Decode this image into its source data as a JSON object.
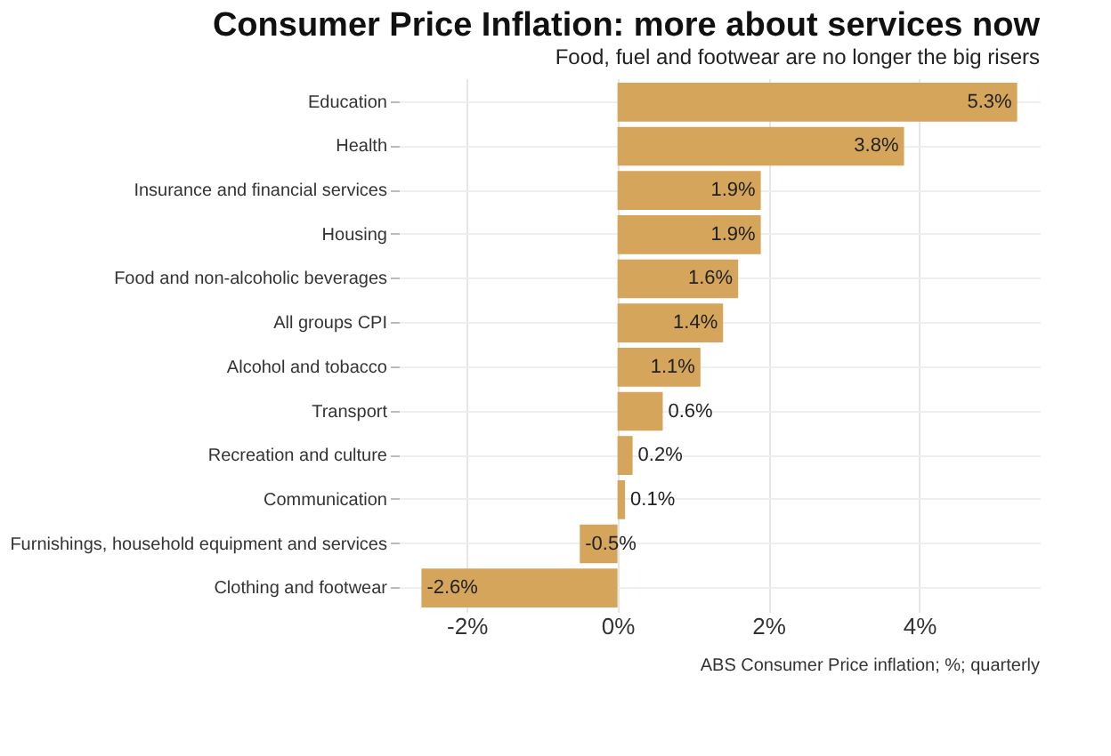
{
  "chart_data": {
    "type": "bar",
    "orientation": "horizontal",
    "title": "Consumer Price Inflation: more about services now",
    "subtitle": "Food, fuel and footwear are no longer the big risers",
    "categories": [
      "Education",
      "Health",
      "Insurance and financial services",
      "Housing",
      "Food and non-alcoholic beverages",
      "All groups CPI",
      "Alcohol and tobacco",
      "Transport",
      "Recreation and culture",
      "Communication",
      "Furnishings, household equipment and services",
      "Clothing and footwear"
    ],
    "values": [
      5.3,
      3.8,
      1.9,
      1.9,
      1.6,
      1.4,
      1.1,
      0.6,
      0.2,
      0.1,
      -0.5,
      -2.6
    ],
    "value_labels": [
      "5.3%",
      "3.8%",
      "1.9%",
      "1.9%",
      "1.6%",
      "1.4%",
      "1.1%",
      "0.6%",
      "0.2%",
      "0.1%",
      "-0.5%",
      "-2.6%"
    ],
    "color": "#d4a55a",
    "xlim": [
      -2.9,
      5.6
    ],
    "xticks": [
      {
        "value": -2,
        "label": "-2%"
      },
      {
        "value": 0,
        "label": "0%"
      },
      {
        "value": 2,
        "label": "2%"
      },
      {
        "value": 4,
        "label": "4%"
      }
    ],
    "grid": true,
    "annotations": [
      "ABS Consumer Price inflation; %; quarterly"
    ]
  }
}
